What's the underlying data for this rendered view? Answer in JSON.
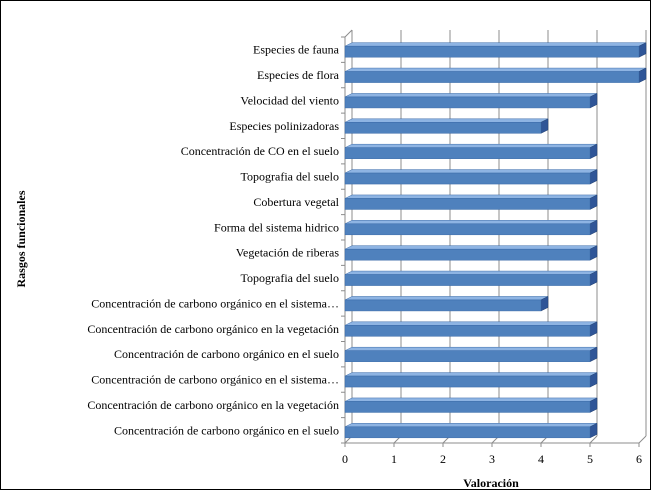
{
  "chart_data": {
    "type": "bar",
    "orientation": "horizontal",
    "style": "3d",
    "categories": [
      "Especies de fauna",
      "Especies de flora",
      "Velocidad del viento",
      "Especies polinizadoras",
      "Concentración de CO en el suelo",
      "Topografia del suelo",
      "Cobertura vegetal",
      "Forma del sistema hidrico",
      "Vegetación de riberas",
      "Topografia del suelo",
      "Concentración de carbono orgánico en el sistema…",
      "Concentración de carbono orgánico en la vegetación",
      "Concentración de carbono orgánico en el suelo",
      "Concentración de carbono orgánico en el sistema…",
      "Concentración de carbono orgánico en la vegetación",
      "Concentración de carbono orgánico en el suelo"
    ],
    "values": [
      6,
      6,
      5,
      4,
      5,
      5,
      5,
      5,
      5,
      5,
      4,
      5,
      5,
      5,
      5,
      5
    ],
    "xlabel": "Valoración",
    "ylabel": "Rasgos funcionales",
    "xlim": [
      0,
      6
    ],
    "xticks": [
      "0",
      "1",
      "2",
      "3",
      "4",
      "5",
      "6"
    ],
    "grid": true,
    "legend": "none",
    "colors": {
      "bar_front": "#4f81bd",
      "bar_top": "#8eb4e3",
      "bar_side": "#2f5597",
      "gridline": "#8c8c8c",
      "wall": "#ffffff"
    }
  }
}
